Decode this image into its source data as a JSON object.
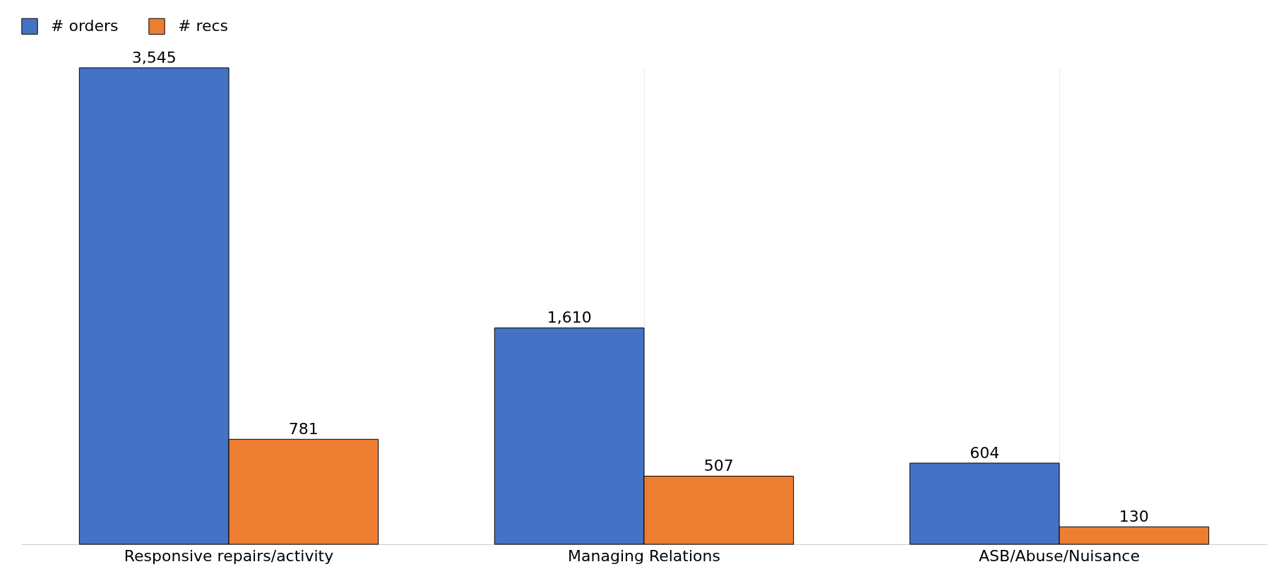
{
  "chart_data": {
    "type": "bar",
    "categories": [
      "Responsive repairs/activity",
      "Managing Relations",
      "ASB/Abuse/Nuisance"
    ],
    "series": [
      {
        "name": "# orders",
        "color": "#4472c4",
        "values": [
          3545,
          1610,
          604
        ],
        "value_labels": [
          "3,545",
          "1,610",
          "604"
        ]
      },
      {
        "name": "# recs",
        "color": "#ed7d31",
        "values": [
          781,
          507,
          130
        ],
        "value_labels": [
          "781",
          "507",
          "130"
        ]
      }
    ],
    "grid": "x",
    "legend": "top left"
  }
}
